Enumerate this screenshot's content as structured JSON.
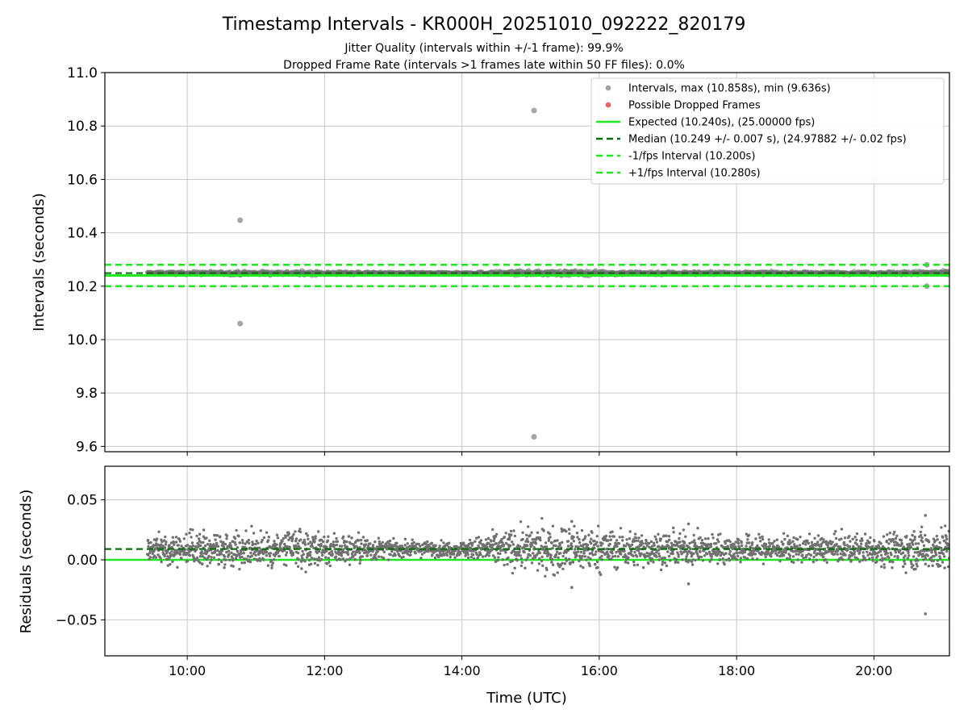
{
  "chart_data": {
    "type": "scatter",
    "title": "Timestamp Intervals - KR000H_20251010_092222_820179",
    "subtitle_lines": [
      "Jitter Quality (intervals within +/-1 frame): 99.9%",
      "Dropped Frame Rate (intervals >1 frames late within 50 FF files): 0.0%"
    ],
    "xlabel": "Time (UTC)",
    "x_range_hours": [
      8.8,
      21.1
    ],
    "x_ticks": [
      {
        "value": 10,
        "label": "10:00"
      },
      {
        "value": 12,
        "label": "12:00"
      },
      {
        "value": 14,
        "label": "14:00"
      },
      {
        "value": 16,
        "label": "16:00"
      },
      {
        "value": 18,
        "label": "18:00"
      },
      {
        "value": 20,
        "label": "20:00"
      }
    ],
    "grid": true,
    "top_panel": {
      "ylabel": "Intervals (seconds)",
      "ylim": [
        9.58,
        11.0
      ],
      "y_ticks": [
        9.6,
        9.8,
        10.0,
        10.2,
        10.4,
        10.6,
        10.8,
        11.0
      ],
      "y_tick_labels": [
        "9.6",
        "9.8",
        "10.0",
        "10.2",
        "10.4",
        "10.6",
        "10.8",
        "11.0"
      ],
      "expected": 10.24,
      "median": 10.249,
      "minus_interval": 10.2,
      "plus_interval": 10.28,
      "band_center": 10.249,
      "band_halfwidth": 0.02,
      "outliers": [
        {
          "x": 10.77,
          "y": 10.447
        },
        {
          "x": 10.77,
          "y": 10.06
        },
        {
          "x": 15.05,
          "y": 10.858
        },
        {
          "x": 15.05,
          "y": 9.636
        },
        {
          "x": 20.77,
          "y": 10.28
        },
        {
          "x": 20.77,
          "y": 10.2
        }
      ],
      "legend_position": "upper-right",
      "legend": [
        {
          "label": "Intervals, max (10.858s), min (9.636s)",
          "kind": "dot",
          "color": "#a0a0a0"
        },
        {
          "label": "Possible Dropped Frames",
          "kind": "dot",
          "color": "#f06060"
        },
        {
          "label": "Expected (10.240s), (25.00000 fps)",
          "kind": "solid",
          "color": "#1ee81e"
        },
        {
          "label": "Median (10.249 +/- 0.007 s), (24.97882 +/- 0.02 fps)",
          "kind": "dashed",
          "color": "#0a6e0a"
        },
        {
          "label": "-1/fps Interval (10.200s)",
          "kind": "dashed",
          "color": "#1ee81e"
        },
        {
          "label": "+1/fps Interval (10.280s)",
          "kind": "dashed",
          "color": "#1ee81e"
        }
      ]
    },
    "bottom_panel": {
      "ylabel": "Residuals (seconds)",
      "ylim": [
        -0.08,
        0.078
      ],
      "y_ticks": [
        -0.05,
        0.0,
        0.05
      ],
      "y_tick_labels": [
        "−0.05",
        "0.00",
        "0.05"
      ],
      "expected_line": 0.0,
      "median_line": 0.009,
      "data_x_range": [
        9.42,
        21.1
      ],
      "notable_points": [
        {
          "x": 20.75,
          "y": 0.037
        },
        {
          "x": 20.75,
          "y": -0.045
        },
        {
          "x": 15.6,
          "y": 0.032
        },
        {
          "x": 17.3,
          "y": 0.03
        },
        {
          "x": 17.3,
          "y": -0.02
        },
        {
          "x": 15.6,
          "y": -0.023
        }
      ],
      "spread_profile": [
        {
          "x": 9.5,
          "sd": 0.005
        },
        {
          "x": 10.5,
          "sd": 0.007
        },
        {
          "x": 11.5,
          "sd": 0.008
        },
        {
          "x": 12.5,
          "sd": 0.006
        },
        {
          "x": 13.0,
          "sd": 0.003
        },
        {
          "x": 14.0,
          "sd": 0.003
        },
        {
          "x": 14.5,
          "sd": 0.007
        },
        {
          "x": 15.5,
          "sd": 0.01
        },
        {
          "x": 16.5,
          "sd": 0.007
        },
        {
          "x": 17.5,
          "sd": 0.006
        },
        {
          "x": 19.0,
          "sd": 0.005
        },
        {
          "x": 20.0,
          "sd": 0.006
        },
        {
          "x": 21.0,
          "sd": 0.009
        }
      ]
    },
    "colors": {
      "points": "#707070",
      "outlier_points": "#a6a6a6",
      "expected": "#1ee81e",
      "median": "#0a6e0a",
      "interval": "#1ee81e",
      "grid": "#c8c8c8"
    }
  }
}
